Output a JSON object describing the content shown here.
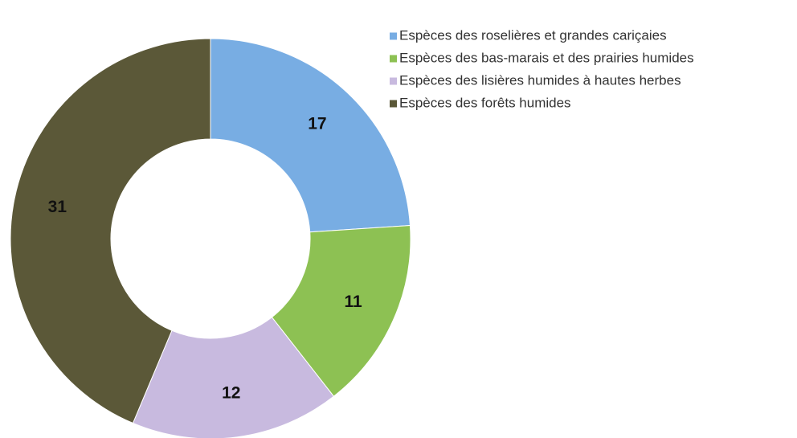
{
  "chart_data": {
    "type": "pie",
    "donut": true,
    "categories": [
      "Espèces des roselières et grandes cariçaies",
      "Espèces des bas-marais et des prairies humides",
      "Espèces des lisières humides à hautes herbes",
      "Espèces des forêts humides"
    ],
    "values": [
      17,
      11,
      12,
      31
    ],
    "colors": [
      "#78ade3",
      "#8dc153",
      "#c8badf",
      "#5b5838"
    ],
    "legend": "top-right"
  }
}
